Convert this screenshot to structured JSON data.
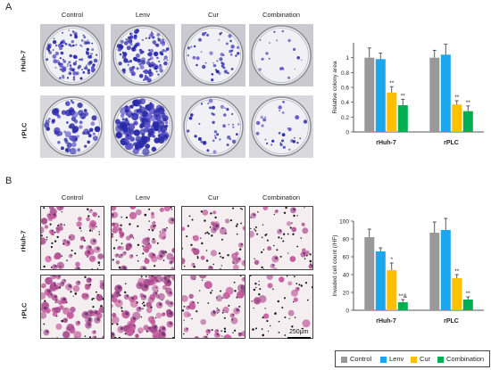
{
  "panel_a": {
    "letter": "A",
    "columns": [
      "Control",
      "Lenv",
      "Cur",
      "Combination"
    ],
    "rows": [
      "rHuh-7",
      "rPLC"
    ]
  },
  "panel_b": {
    "letter": "B",
    "columns": [
      "Control",
      "Lenv",
      "Cur",
      "Combination"
    ],
    "rows": [
      "rHuh-7",
      "rPLC"
    ],
    "scale_bar": "250μm"
  },
  "legend": [
    {
      "name": "Control",
      "color": "#999999"
    },
    {
      "name": "Lenv",
      "color": "#1aa7ee"
    },
    {
      "name": "Cur",
      "color": "#ffc000"
    },
    {
      "name": "Combination",
      "color": "#00b050"
    }
  ],
  "chart_data": [
    {
      "type": "bar",
      "ylabel": "Relative colony area",
      "ylim": [
        0,
        1.2
      ],
      "yticks": [
        "0",
        "0.2",
        "0.4",
        "0.6",
        "0.8",
        "1"
      ],
      "categories": [
        "rHuh-7",
        "rPLC"
      ],
      "series": [
        {
          "name": "Control",
          "values": [
            1.0,
            1.0
          ],
          "errors": [
            0.13,
            0.1
          ]
        },
        {
          "name": "Lenv",
          "values": [
            0.98,
            1.04
          ],
          "errors": [
            0.08,
            0.14
          ]
        },
        {
          "name": "Cur",
          "values": [
            0.53,
            0.37
          ],
          "errors": [
            0.08,
            0.05
          ]
        },
        {
          "name": "Combination",
          "values": [
            0.36,
            0.28
          ],
          "errors": [
            0.08,
            0.07
          ]
        }
      ],
      "annotations": [
        {
          "category": 0,
          "series": 2,
          "text": "**"
        },
        {
          "category": 0,
          "series": 3,
          "text": "**"
        },
        {
          "category": 1,
          "series": 2,
          "text": "**"
        },
        {
          "category": 1,
          "series": 3,
          "text": "**"
        }
      ]
    },
    {
      "type": "bar",
      "ylabel": "Invaded cell count (/HF)",
      "ylim": [
        0,
        100
      ],
      "yticks": [
        "0",
        "20",
        "40",
        "60",
        "80",
        "100"
      ],
      "categories": [
        "rHuh-7",
        "rPLC"
      ],
      "series": [
        {
          "name": "Control",
          "values": [
            82,
            87
          ],
          "errors": [
            9,
            12
          ]
        },
        {
          "name": "Lenv",
          "values": [
            66,
            90
          ],
          "errors": [
            4,
            13
          ]
        },
        {
          "name": "Cur",
          "values": [
            45,
            36
          ],
          "errors": [
            8,
            4
          ]
        },
        {
          "name": "Combination",
          "values": [
            9,
            12
          ],
          "errors": [
            3,
            3
          ]
        }
      ],
      "annotations": [
        {
          "category": 0,
          "series": 2,
          "text": "*"
        },
        {
          "category": 0,
          "series": 3,
          "text": "**&"
        },
        {
          "category": 1,
          "series": 2,
          "text": "**"
        },
        {
          "category": 1,
          "series": 3,
          "text": "**"
        }
      ]
    }
  ]
}
